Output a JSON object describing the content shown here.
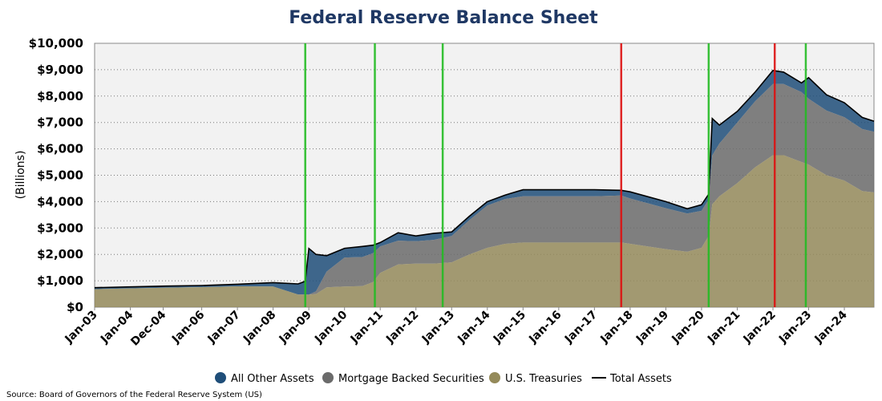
{
  "chart_data": {
    "type": "area",
    "title": "Federal Reserve Balance Sheet",
    "ylabel": "(Billions)",
    "xlabel": "",
    "ylim": [
      0,
      10000
    ],
    "yticks": [
      "$0",
      "$1,000",
      "$2,000",
      "$3,000",
      "$4,000",
      "$5,000",
      "$6,000",
      "$7,000",
      "$8,000",
      "$9,000",
      "$10,000"
    ],
    "ytick_values": [
      0,
      1000,
      2000,
      3000,
      4000,
      5000,
      6000,
      7000,
      8000,
      9000,
      10000
    ],
    "xlim": [
      2003.0,
      2024.83
    ],
    "xticks": [
      "Jan-03",
      "Jan-04",
      "Dec-04",
      "Jan-06",
      "Jan-07",
      "Jan-08",
      "Jan-09",
      "Jan-10",
      "Jan-11",
      "Jan-12",
      "Jan-13",
      "Jan-14",
      "Jan-15",
      "Jan-16",
      "Jan-17",
      "Jan-18",
      "Jan-19",
      "Jan-20",
      "Jan-21",
      "Jan-22",
      "Jan-23",
      "Jan-24"
    ],
    "xtick_values": [
      2003.0,
      2004.0,
      2004.92,
      2006.0,
      2007.0,
      2008.0,
      2009.0,
      2010.0,
      2011.0,
      2012.0,
      2013.0,
      2014.0,
      2015.0,
      2016.0,
      2017.0,
      2018.0,
      2019.0,
      2020.0,
      2021.0,
      2022.0,
      2023.0,
      2024.0
    ],
    "grid": true,
    "legend_position": "bottom",
    "colors": {
      "all_other": "#1f4e79",
      "mbs": "#6b6b6b",
      "treasuries": "#948a5a",
      "total": "#000000",
      "green_line": "#22bb22",
      "red_line": "#dd1111",
      "title": "#1f3864",
      "plot_bg": "#f2f2f2"
    },
    "vertical_lines": [
      {
        "x": 2008.9,
        "color": "green"
      },
      {
        "x": 2010.85,
        "color": "green"
      },
      {
        "x": 2012.75,
        "color": "green"
      },
      {
        "x": 2017.75,
        "color": "red"
      },
      {
        "x": 2020.2,
        "color": "green"
      },
      {
        "x": 2022.05,
        "color": "red"
      },
      {
        "x": 2022.92,
        "color": "green"
      }
    ],
    "x": [
      2003.0,
      2004.0,
      2005.0,
      2006.0,
      2007.0,
      2008.0,
      2008.7,
      2008.9,
      2009.0,
      2009.2,
      2009.5,
      2010.0,
      2010.5,
      2010.8,
      2011.0,
      2011.5,
      2012.0,
      2012.5,
      2013.0,
      2013.5,
      2014.0,
      2014.5,
      2015.0,
      2016.0,
      2017.0,
      2017.75,
      2018.0,
      2019.0,
      2019.6,
      2020.0,
      2020.2,
      2020.3,
      2020.5,
      2021.0,
      2021.5,
      2022.0,
      2022.3,
      2022.8,
      2023.0,
      2023.5,
      2024.0,
      2024.5,
      2024.83
    ],
    "series": [
      {
        "name": "U.S. Treasuries",
        "values": [
          680,
          710,
          740,
          760,
          790,
          780,
          480,
          480,
          475,
          500,
          750,
          780,
          800,
          950,
          1300,
          1620,
          1650,
          1650,
          1700,
          2000,
          2250,
          2400,
          2450,
          2450,
          2450,
          2450,
          2400,
          2200,
          2100,
          2250,
          2700,
          3900,
          4200,
          4700,
          5300,
          5760,
          5760,
          5500,
          5400,
          5000,
          4800,
          4400,
          4350
        ]
      },
      {
        "name": "Mortgage Backed Securities",
        "values": [
          0,
          0,
          0,
          0,
          0,
          0,
          0,
          0,
          0,
          100,
          600,
          1100,
          1100,
          1100,
          1000,
          900,
          850,
          900,
          1000,
          1300,
          1600,
          1700,
          1750,
          1750,
          1750,
          1780,
          1720,
          1550,
          1450,
          1400,
          1380,
          1850,
          2000,
          2300,
          2500,
          2700,
          2700,
          2650,
          2500,
          2450,
          2400,
          2350,
          2300
        ]
      },
      {
        "name": "All Other Assets",
        "values": [
          60,
          60,
          60,
          60,
          80,
          150,
          400,
          500,
          1750,
          1400,
          600,
          350,
          400,
          300,
          150,
          300,
          200,
          250,
          150,
          150,
          150,
          150,
          250,
          250,
          250,
          200,
          250,
          250,
          180,
          230,
          200,
          1400,
          700,
          420,
          350,
          510,
          450,
          350,
          800,
          600,
          550,
          440,
          400
        ]
      },
      {
        "name": "Total Assets",
        "values": [
          740,
          770,
          800,
          820,
          870,
          930,
          880,
          980,
          2225,
          2000,
          1950,
          2230,
          2300,
          2350,
          2450,
          2820,
          2700,
          2800,
          2850,
          3450,
          4000,
          4250,
          4450,
          4450,
          4450,
          4430,
          4370,
          4000,
          3730,
          3880,
          4280,
          7150,
          6900,
          7420,
          8150,
          8970,
          8910,
          8500,
          8700,
          8050,
          7750,
          7190,
          7050
        ]
      }
    ],
    "legend": [
      "All Other Assets",
      "Mortgage Backed Securities",
      "U.S. Treasuries",
      "Total Assets"
    ],
    "source": "Source: Board of Governors of the Federal Reserve System (US)"
  }
}
